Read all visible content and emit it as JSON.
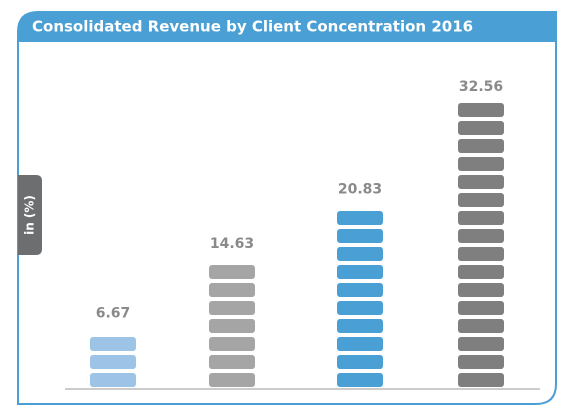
{
  "chart_data": {
    "type": "bar",
    "title": "Consolidated Revenue by Client Concentration 2016",
    "y_label": "in (%)",
    "categories": [
      null,
      null,
      null,
      null
    ],
    "values": [
      6.67,
      14.63,
      20.83,
      32.56
    ],
    "colors": [
      "#9dc3e6",
      "#a5a5a5",
      "#4a9fd4",
      "#7f7f7f"
    ]
  }
}
